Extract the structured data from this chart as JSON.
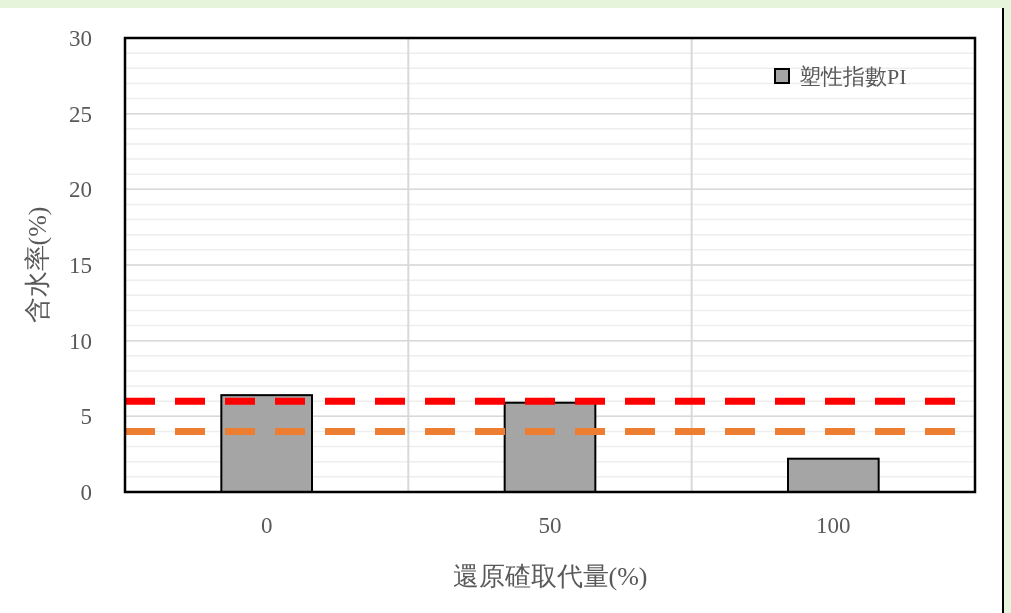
{
  "chart_data": {
    "type": "bar",
    "xlabel": "還原碴取代量(%)",
    "ylabel": "含水率(%)",
    "categories": [
      "0",
      "50",
      "100"
    ],
    "series": [
      {
        "name": "塑性指數PI",
        "color": "#a5a5a5",
        "values": [
          6.4,
          5.9,
          2.2
        ]
      }
    ],
    "ylim": [
      0,
      30
    ],
    "yticks": [
      0,
      5,
      10,
      15,
      20,
      25,
      30
    ],
    "grid": true,
    "legend": "top right",
    "ref_lines": [
      {
        "axis": "y",
        "value": 6,
        "color": "#ff0000",
        "line_style": "dashed"
      },
      {
        "axis": "y",
        "value": 4,
        "color": "#ed7d31",
        "line_style": "dashed"
      }
    ]
  }
}
